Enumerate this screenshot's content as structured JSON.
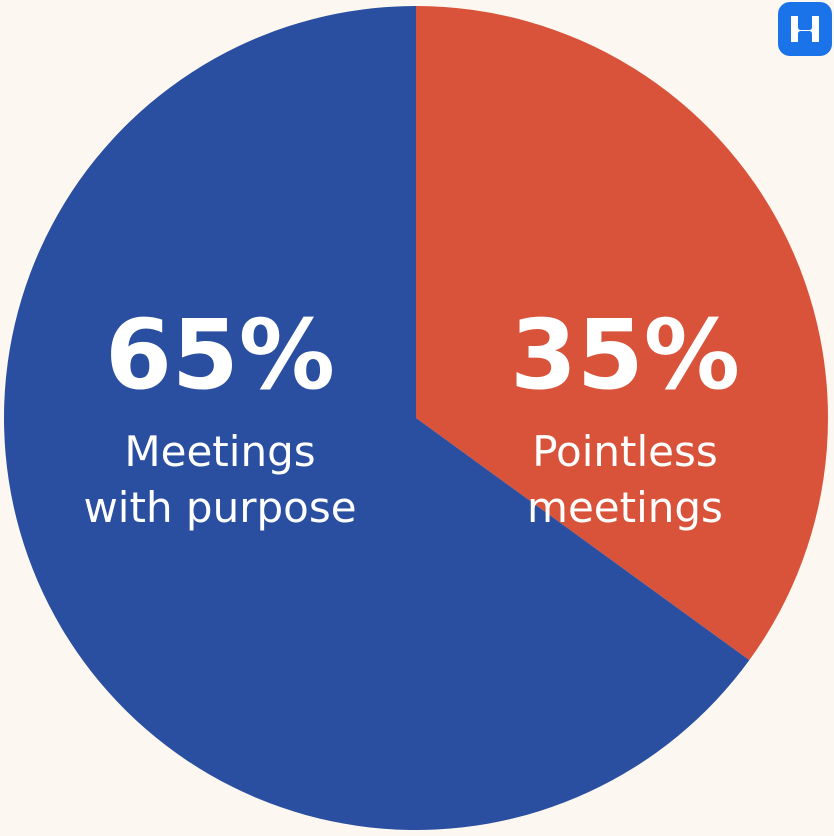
{
  "chart_data": {
    "type": "pie",
    "slices": [
      {
        "value_pct": 65,
        "value_text": "65%",
        "label_lines": [
          "Meetings",
          "with purpose"
        ],
        "color": "#2a4fa0"
      },
      {
        "value_pct": 35,
        "value_text": "35%",
        "label_lines": [
          "Pointless",
          "meetings"
        ],
        "color": "#d9533a"
      }
    ],
    "start_angle": "12 o'clock",
    "direction": "counter-clockwise for first slice"
  },
  "brand": {
    "logo_icon": "brand-logo-icon",
    "logo_color": "#1a73e8"
  },
  "background_color": "#fcf8f1"
}
